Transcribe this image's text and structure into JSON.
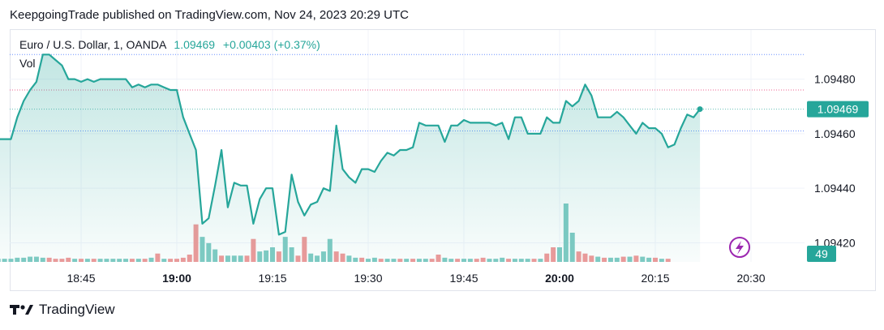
{
  "header": {
    "published": "KeepgoingTrade published on TradingView.com, Nov 24, 2023 20:29 UTC"
  },
  "legend": {
    "symbol": "Euro / U.S. Dollar, 1, OANDA",
    "price": "1.09469",
    "change": "+0.00403 (+0.37%)",
    "volume_label": "Vol"
  },
  "footer": {
    "brand": "TradingView"
  },
  "colors": {
    "line": "#26a69a",
    "up_volume": "#80cbc4",
    "down_volume": "#ef9a9a",
    "grid": "#f0f3fa",
    "accent": "#9c27b0"
  },
  "icons": {
    "flash": "lightning-icon",
    "logo": "tradingview-logo-icon"
  },
  "chart_data": {
    "type": "area",
    "title": "Euro / U.S. Dollar, 1, OANDA",
    "x_ticks": [
      "18:45",
      "19:00",
      "19:15",
      "19:30",
      "19:45",
      "20:00",
      "20:15",
      "20:30"
    ],
    "bold_x_ticks": [
      "19:00",
      "20:00"
    ],
    "y_ticks": [
      "1.09480",
      "1.09460",
      "1.09440",
      "1.09420"
    ],
    "ylim": [
      1.09413,
      1.09498
    ],
    "x_start_minutes": 28,
    "last_price_label": "1.09469",
    "volume_label_value": "49",
    "grid": true,
    "series": [
      {
        "values": [
          1.09458,
          1.09457,
          1.09458,
          1.09458,
          1.09458,
          1.09458,
          1.09458,
          1.09466,
          1.09472,
          1.09476,
          1.09479,
          1.09489,
          1.09489,
          1.09487,
          1.09485,
          1.0948,
          1.0948,
          1.09479,
          1.0948,
          1.09479,
          1.0948,
          1.0948,
          1.0948,
          1.0948,
          1.0948,
          1.09477,
          1.09478,
          1.09477,
          1.09478,
          1.09478,
          1.09477,
          1.09476,
          1.09476,
          1.09466,
          1.0946,
          1.09454,
          1.09427,
          1.09429,
          1.09441,
          1.09454,
          1.09433,
          1.09442,
          1.09441,
          1.09441,
          1.09427,
          1.09436,
          1.0944,
          1.0944,
          1.09423,
          1.09424,
          1.09445,
          1.09435,
          1.0943,
          1.09434,
          1.09435,
          1.0944,
          1.09439,
          1.09463,
          1.09447,
          1.09444,
          1.09442,
          1.09447,
          1.09447,
          1.09446,
          1.0945,
          1.09453,
          1.09452,
          1.09454,
          1.09454,
          1.09455,
          1.09464,
          1.09463,
          1.09463,
          1.09463,
          1.09457,
          1.09463,
          1.09463,
          1.09465,
          1.09464,
          1.09464,
          1.09464,
          1.09464,
          1.09463,
          1.09464,
          1.09458,
          1.09466,
          1.09466,
          1.0946,
          1.0946,
          1.0946,
          1.09466,
          1.09464,
          1.09464,
          1.09472,
          1.0947,
          1.09472,
          1.09478,
          1.09474,
          1.09466,
          1.09466,
          1.09466,
          1.09468,
          1.09466,
          1.09463,
          1.0946,
          1.09464,
          1.09462,
          1.09462,
          1.0946,
          1.09455,
          1.09456,
          1.09462,
          1.09467,
          1.09466,
          1.09469
        ]
      }
    ],
    "volume": [
      {
        "v": 3,
        "up": true
      },
      {
        "v": 3,
        "up": false
      },
      {
        "v": 3,
        "up": true
      },
      {
        "v": 3,
        "up": true
      },
      {
        "v": 3,
        "up": true
      },
      {
        "v": 3,
        "up": true
      },
      {
        "v": 3,
        "up": true
      },
      {
        "v": 4,
        "up": true
      },
      {
        "v": 4,
        "up": true
      },
      {
        "v": 5,
        "up": true
      },
      {
        "v": 5,
        "up": true
      },
      {
        "v": 4,
        "up": true
      },
      {
        "v": 4,
        "up": false
      },
      {
        "v": 3,
        "up": false
      },
      {
        "v": 3,
        "up": false
      },
      {
        "v": 4,
        "up": false
      },
      {
        "v": 3,
        "up": true
      },
      {
        "v": 3,
        "up": false
      },
      {
        "v": 3,
        "up": true
      },
      {
        "v": 3,
        "up": false
      },
      {
        "v": 3,
        "up": true
      },
      {
        "v": 3,
        "up": true
      },
      {
        "v": 3,
        "up": true
      },
      {
        "v": 3,
        "up": true
      },
      {
        "v": 3,
        "up": true
      },
      {
        "v": 3,
        "up": false
      },
      {
        "v": 3,
        "up": true
      },
      {
        "v": 3,
        "up": false
      },
      {
        "v": 4,
        "up": true
      },
      {
        "v": 8,
        "up": false
      },
      {
        "v": 3,
        "up": true
      },
      {
        "v": 3,
        "up": false
      },
      {
        "v": 3,
        "up": false
      },
      {
        "v": 4,
        "up": false
      },
      {
        "v": 7,
        "up": false
      },
      {
        "v": 36,
        "up": false
      },
      {
        "v": 24,
        "up": true
      },
      {
        "v": 18,
        "up": true
      },
      {
        "v": 12,
        "up": true
      },
      {
        "v": 6,
        "up": false
      },
      {
        "v": 6,
        "up": true
      },
      {
        "v": 6,
        "up": true
      },
      {
        "v": 6,
        "up": true
      },
      {
        "v": 6,
        "up": false
      },
      {
        "v": 22,
        "up": false
      },
      {
        "v": 10,
        "up": true
      },
      {
        "v": 11,
        "up": true
      },
      {
        "v": 14,
        "up": true
      },
      {
        "v": 10,
        "up": false
      },
      {
        "v": 24,
        "up": true
      },
      {
        "v": 14,
        "up": true
      },
      {
        "v": 6,
        "up": false
      },
      {
        "v": 24,
        "up": false
      },
      {
        "v": 8,
        "up": true
      },
      {
        "v": 6,
        "up": true
      },
      {
        "v": 10,
        "up": true
      },
      {
        "v": 22,
        "up": true
      },
      {
        "v": 10,
        "up": false
      },
      {
        "v": 8,
        "up": false
      },
      {
        "v": 6,
        "up": true
      },
      {
        "v": 4,
        "up": true
      },
      {
        "v": 4,
        "up": false
      },
      {
        "v": 3,
        "up": true
      },
      {
        "v": 4,
        "up": true
      },
      {
        "v": 3,
        "up": false
      },
      {
        "v": 3,
        "up": true
      },
      {
        "v": 3,
        "up": true
      },
      {
        "v": 3,
        "up": false
      },
      {
        "v": 3,
        "up": true
      },
      {
        "v": 3,
        "up": false
      },
      {
        "v": 3,
        "up": true
      },
      {
        "v": 3,
        "up": true
      },
      {
        "v": 3,
        "up": false
      },
      {
        "v": 7,
        "up": false
      },
      {
        "v": 4,
        "up": true
      },
      {
        "v": 3,
        "up": true
      },
      {
        "v": 3,
        "up": false
      },
      {
        "v": 3,
        "up": true
      },
      {
        "v": 3,
        "up": true
      },
      {
        "v": 3,
        "up": false
      },
      {
        "v": 4,
        "up": false
      },
      {
        "v": 3,
        "up": true
      },
      {
        "v": 3,
        "up": true
      },
      {
        "v": 4,
        "up": true
      },
      {
        "v": 3,
        "up": false
      },
      {
        "v": 3,
        "up": true
      },
      {
        "v": 3,
        "up": true
      },
      {
        "v": 3,
        "up": true
      },
      {
        "v": 3,
        "up": false
      },
      {
        "v": 3,
        "up": true
      },
      {
        "v": 8,
        "up": false
      },
      {
        "v": 14,
        "up": false
      },
      {
        "v": 14,
        "up": true
      },
      {
        "v": 56,
        "up": true
      },
      {
        "v": 28,
        "up": true
      },
      {
        "v": 10,
        "up": false
      },
      {
        "v": 8,
        "up": false
      },
      {
        "v": 6,
        "up": false
      },
      {
        "v": 5,
        "up": true
      },
      {
        "v": 4,
        "up": false
      },
      {
        "v": 4,
        "up": true
      },
      {
        "v": 4,
        "up": true
      },
      {
        "v": 5,
        "up": false
      },
      {
        "v": 5,
        "up": true
      },
      {
        "v": 6,
        "up": false
      },
      {
        "v": 5,
        "up": true
      },
      {
        "v": 4,
        "up": true
      },
      {
        "v": 4,
        "up": false
      },
      {
        "v": 3,
        "up": true
      },
      {
        "v": 3,
        "up": false
      }
    ]
  }
}
